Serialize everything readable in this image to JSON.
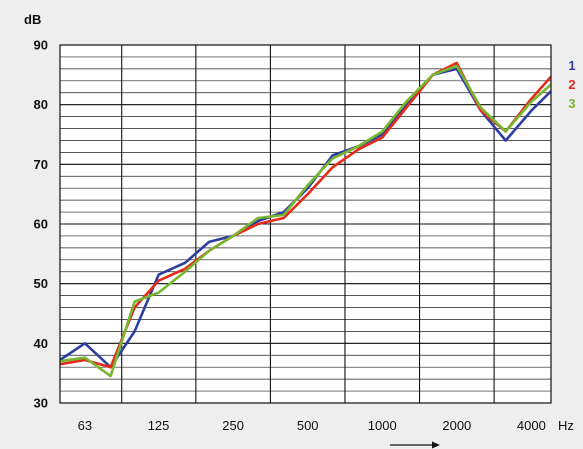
{
  "chart_data": {
    "type": "line",
    "ylabel": "dB",
    "xlabel": "Hz",
    "ylim": [
      30,
      90
    ],
    "x_scale": "log",
    "xlim": [
      50,
      4800
    ],
    "y_ticks": [
      30,
      40,
      50,
      60,
      70,
      80,
      90
    ],
    "x_ticks": [
      63,
      125,
      250,
      500,
      1000,
      2000,
      4000
    ],
    "x_tick_labels": [
      "63",
      "125",
      "250",
      "500",
      "1000",
      "2000",
      "4000"
    ],
    "minor_y_step": 2,
    "dotted_x_lines": [
      100,
      3150
    ],
    "grid": true,
    "legend_position": "right",
    "x_third_octave": [
      50,
      63,
      80,
      100,
      125,
      160,
      200,
      250,
      315,
      400,
      500,
      630,
      800,
      1000,
      1250,
      1600,
      2000,
      2500,
      3150,
      4000,
      5000
    ],
    "series": [
      {
        "name": "1",
        "color": "#2e3fa0",
        "x": [
          50,
          63,
          80,
          100,
          125,
          160,
          200,
          250,
          315,
          400,
          500,
          630,
          800,
          1000,
          1250,
          1600,
          2000,
          2500,
          3150,
          4000,
          5000
        ],
        "values": [
          37.2,
          40.0,
          36.0,
          42.0,
          51.5,
          53.5,
          57.0,
          58.0,
          60.5,
          62.0,
          66.0,
          71.5,
          73.0,
          75.0,
          80.0,
          85.0,
          86.0,
          79.0,
          74.0,
          79.0,
          83.0
        ]
      },
      {
        "name": "2",
        "color": "#e42b1c",
        "x": [
          50,
          63,
          80,
          100,
          125,
          160,
          200,
          250,
          315,
          400,
          500,
          630,
          800,
          1000,
          1250,
          1600,
          2000,
          2500,
          3150,
          4000,
          5000
        ],
        "values": [
          36.5,
          37.2,
          36.0,
          46.0,
          50.5,
          52.5,
          55.5,
          58.0,
          60.0,
          61.0,
          65.0,
          69.5,
          72.5,
          74.5,
          79.5,
          85.0,
          87.0,
          79.0,
          75.5,
          81.0,
          85.5
        ]
      },
      {
        "name": "3",
        "color": "#77b72f",
        "x": [
          50,
          63,
          80,
          100,
          125,
          160,
          200,
          250,
          315,
          400,
          500,
          630,
          800,
          1000,
          1250,
          1600,
          2000,
          2500,
          3150,
          4000,
          5000
        ],
        "values": [
          37.0,
          37.6,
          34.5,
          47.0,
          48.5,
          52.0,
          55.5,
          58.0,
          61.0,
          61.5,
          66.5,
          71.0,
          73.0,
          75.5,
          80.5,
          85.0,
          86.5,
          79.5,
          75.5,
          80.5,
          84.0
        ]
      }
    ]
  }
}
